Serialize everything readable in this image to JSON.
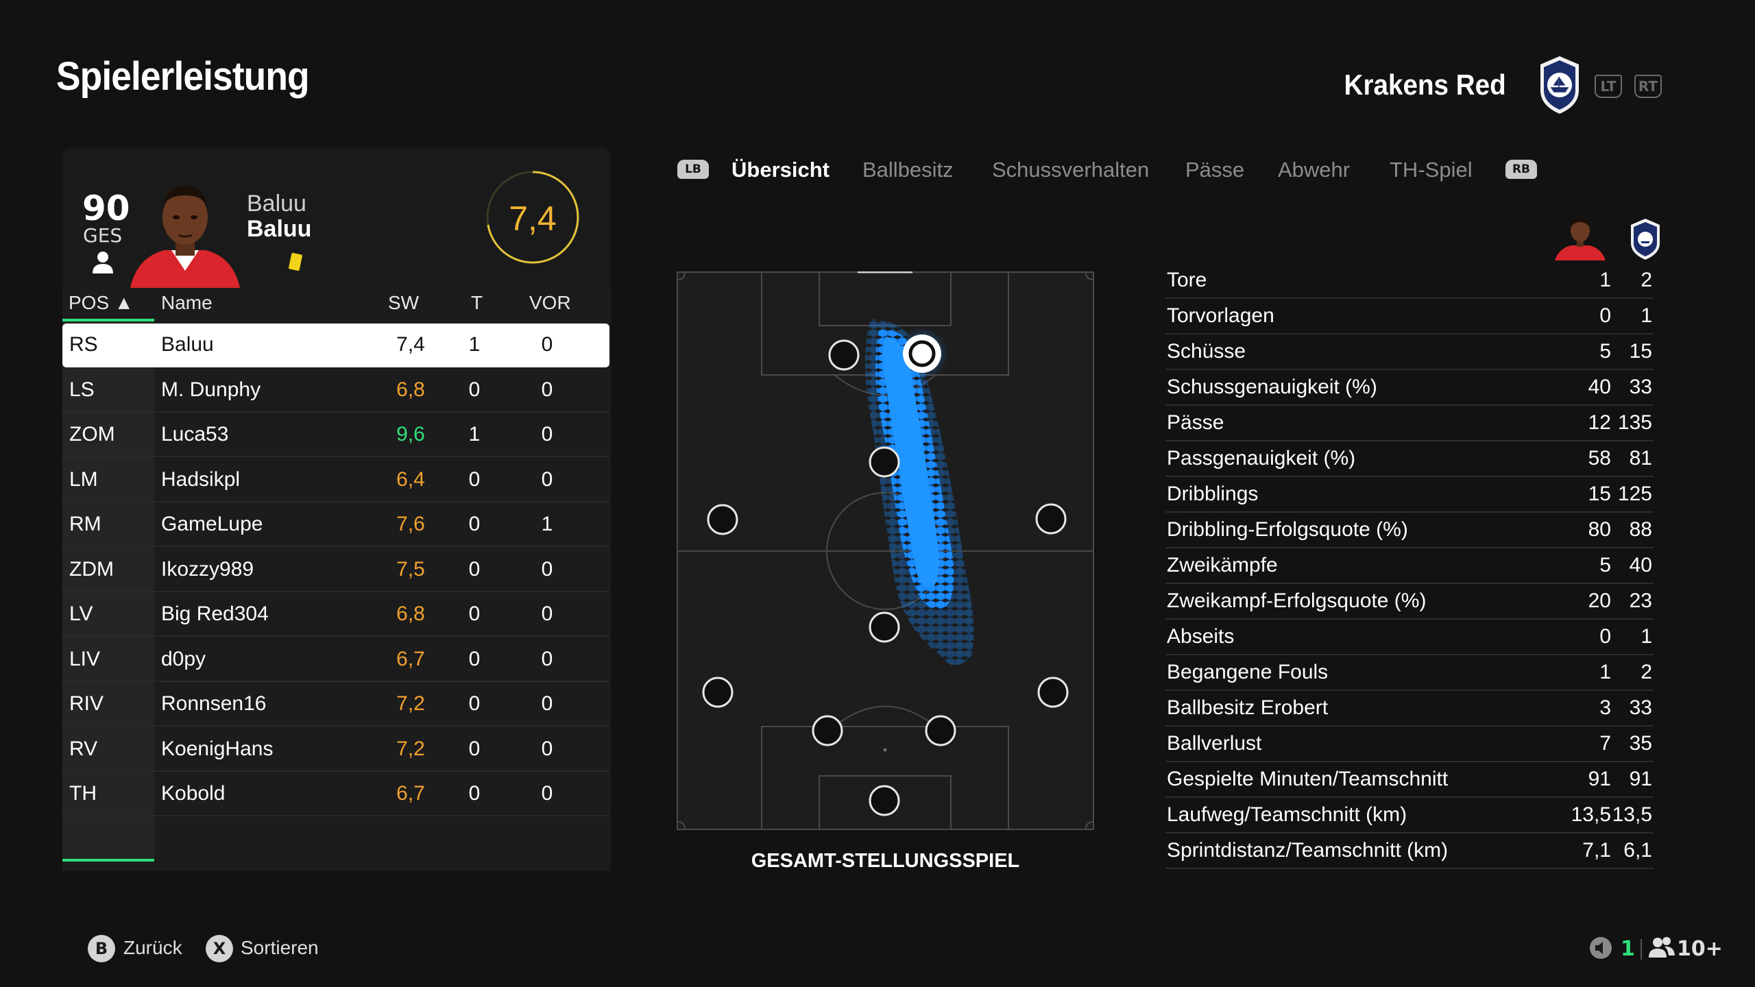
{
  "header": {
    "title": "Spielerleistung",
    "team_name": "Krakens Red",
    "lt_label": "LT",
    "rt_label": "RT"
  },
  "player": {
    "overall": "90",
    "overall_label": "GES",
    "first_name": "Baluu",
    "last_name": "Baluu",
    "rating": "7,4",
    "card": "yellow"
  },
  "table": {
    "headers": {
      "pos": "POS ▲",
      "name": "Name",
      "sw": "SW",
      "t": "T",
      "vor": "VOR"
    },
    "rows": [
      {
        "pos": "RS",
        "name": "Baluu",
        "sw": "7,4",
        "t": "1",
        "vor": "0",
        "selected": true
      },
      {
        "pos": "LS",
        "name": "M. Dunphy",
        "sw": "6,8",
        "t": "0",
        "vor": "0"
      },
      {
        "pos": "ZOM",
        "name": "Luca53",
        "sw": "9,6",
        "t": "1",
        "vor": "0"
      },
      {
        "pos": "LM",
        "name": "Hadsikpl",
        "sw": "6,4",
        "t": "0",
        "vor": "0"
      },
      {
        "pos": "RM",
        "name": "GameLupe",
        "sw": "7,6",
        "t": "0",
        "vor": "1"
      },
      {
        "pos": "ZDM",
        "name": "Ikozzy989",
        "sw": "7,5",
        "t": "0",
        "vor": "0"
      },
      {
        "pos": "LV",
        "name": "Big Red304",
        "sw": "6,8",
        "t": "0",
        "vor": "0"
      },
      {
        "pos": "LIV",
        "name": "d0py",
        "sw": "6,7",
        "t": "0",
        "vor": "0"
      },
      {
        "pos": "RIV",
        "name": "Ronnsen16",
        "sw": "7,2",
        "t": "0",
        "vor": "0"
      },
      {
        "pos": "RV",
        "name": "KoenigHans",
        "sw": "7,2",
        "t": "0",
        "vor": "0"
      },
      {
        "pos": "TH",
        "name": "Kobold",
        "sw": "6,7",
        "t": "0",
        "vor": "0"
      }
    ]
  },
  "tabs": {
    "lb_label": "LB",
    "rb_label": "RB",
    "items": [
      "Übersicht",
      "Ballbesitz",
      "Schussverhalten",
      "Pässe",
      "Abwehr",
      "TH-Spiel"
    ],
    "active": 0
  },
  "pitch": {
    "caption": "GESAMT-STELLUNGSSPIEL"
  },
  "stats": [
    {
      "label": "Tore",
      "player": "1",
      "team": "2"
    },
    {
      "label": "Torvorlagen",
      "player": "0",
      "team": "1"
    },
    {
      "label": "Schüsse",
      "player": "5",
      "team": "15"
    },
    {
      "label": "Schussgenauigkeit (%)",
      "player": "40",
      "team": "33"
    },
    {
      "label": "Pässe",
      "player": "12",
      "team": "135"
    },
    {
      "label": "Passgenauigkeit (%)",
      "player": "58",
      "team": "81"
    },
    {
      "label": "Dribblings",
      "player": "15",
      "team": "125"
    },
    {
      "label": "Dribbling-Erfolgsquote (%)",
      "player": "80",
      "team": "88"
    },
    {
      "label": "Zweikämpfe",
      "player": "5",
      "team": "40"
    },
    {
      "label": "Zweikampf-Erfolgsquote (%)",
      "player": "20",
      "team": "23"
    },
    {
      "label": "Abseits",
      "player": "0",
      "team": "1"
    },
    {
      "label": "Begangene Fouls",
      "player": "1",
      "team": "2"
    },
    {
      "label": "Ballbesitz Erobert",
      "player": "3",
      "team": "33"
    },
    {
      "label": "Ballverlust",
      "player": "7",
      "team": "35"
    },
    {
      "label": "Gespielte Minuten/Teamschnitt",
      "player": "91",
      "team": "91"
    },
    {
      "label": "Laufweg/Teamschnitt (km)",
      "player": "13,5",
      "team": "13,5"
    },
    {
      "label": "Sprintdistanz/Teamschnitt (km)",
      "player": "7,1",
      "team": "6,1"
    }
  ],
  "footer": {
    "back_button": "B",
    "back_label": "Zurück",
    "sort_button": "X",
    "sort_label": "Sortieren",
    "muted_count": "1",
    "users_count": "10+"
  },
  "colors": {
    "accent_green": "#2fe07a",
    "rating_orange": "#f2a12e",
    "rating_green": "#2fe07a",
    "rating_gold": "#f2b434",
    "heatmap_blue": "#1e8fff",
    "background": "#121212"
  },
  "icons": {
    "person": "person-icon",
    "mute": "speaker-muted-icon",
    "users": "users-icon",
    "crest": "team-crest-icon"
  }
}
